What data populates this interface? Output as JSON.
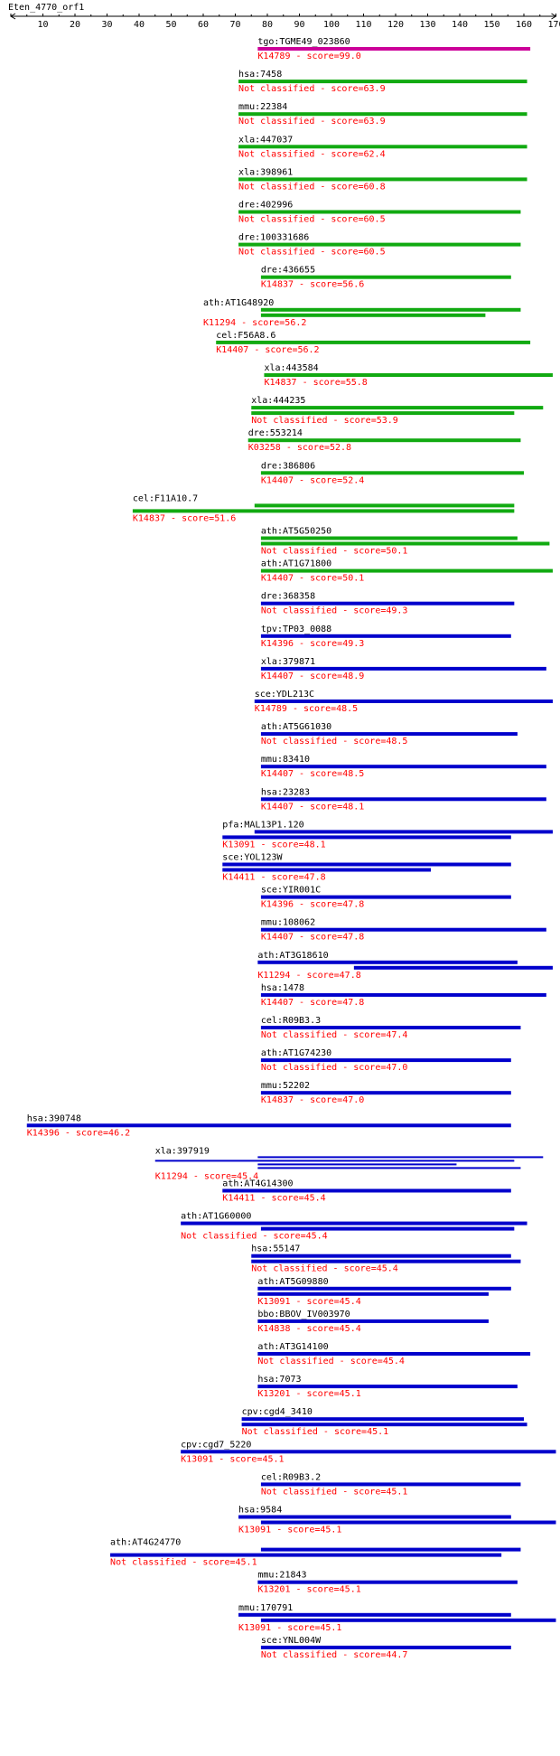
{
  "query": {
    "name": "Eten_4770_orf1",
    "length": 170,
    "scale_ticks": [
      10,
      20,
      30,
      40,
      50,
      60,
      70,
      80,
      90,
      100,
      110,
      120,
      130,
      140,
      150,
      160,
      170
    ]
  },
  "colors": {
    "background": "#ffffff",
    "axis": "#000000",
    "hit_label": "#000000",
    "score_label": "#ff0000",
    "bar_magenta": "#cc0099",
    "bar_green": "#11aa11",
    "bar_blue": "#0000cc"
  },
  "hits": [
    {
      "id": "tgo:TGME49_023860",
      "ko": "K14789",
      "score": "99.0",
      "color": "magenta",
      "label_pos": 77,
      "bars": [
        [
          77,
          162
        ]
      ]
    },
    {
      "id": "hsa:7458",
      "ko": "Not classified",
      "score": "63.9",
      "color": "green",
      "label_pos": 71,
      "bars": [
        [
          71,
          161
        ]
      ]
    },
    {
      "id": "mmu:22384",
      "ko": "Not classified",
      "score": "63.9",
      "color": "green",
      "label_pos": 71,
      "bars": [
        [
          71,
          161
        ]
      ]
    },
    {
      "id": "xla:447037",
      "ko": "Not classified",
      "score": "62.4",
      "color": "green",
      "label_pos": 71,
      "bars": [
        [
          71,
          161
        ]
      ]
    },
    {
      "id": "xla:398961",
      "ko": "Not classified",
      "score": "60.8",
      "color": "green",
      "label_pos": 71,
      "bars": [
        [
          71,
          161
        ]
      ]
    },
    {
      "id": "dre:402996",
      "ko": "Not classified",
      "score": "60.5",
      "color": "green",
      "label_pos": 71,
      "bars": [
        [
          71,
          159
        ]
      ]
    },
    {
      "id": "dre:100331686",
      "ko": "Not classified",
      "score": "60.5",
      "color": "green",
      "label_pos": 71,
      "bars": [
        [
          71,
          159
        ]
      ]
    },
    {
      "id": "dre:436655",
      "ko": "K14837",
      "score": "56.6",
      "color": "green",
      "label_pos": 78,
      "bars": [
        [
          78,
          156
        ]
      ]
    },
    {
      "id": "ath:AT1G48920",
      "ko": "K11294",
      "score": "56.2",
      "color": "green",
      "label_pos": 60,
      "bars": [
        [
          78,
          159
        ],
        [
          78,
          148
        ]
      ]
    },
    {
      "id": "cel:F56A8.6",
      "ko": "K14407",
      "score": "56.2",
      "color": "green",
      "label_pos": 64,
      "bars": [
        [
          64,
          162
        ]
      ]
    },
    {
      "id": "xla:443584",
      "ko": "K14837",
      "score": "55.8",
      "color": "green",
      "label_pos": 79,
      "bars": [
        [
          79,
          169
        ]
      ]
    },
    {
      "id": "xla:444235",
      "ko": "Not classified",
      "score": "53.9",
      "color": "green",
      "label_pos": 75,
      "bars": [
        [
          75,
          166
        ],
        [
          75,
          157
        ]
      ]
    },
    {
      "id": "dre:553214",
      "ko": "K03258",
      "score": "52.8",
      "color": "green",
      "label_pos": 74,
      "bars": [
        [
          74,
          159
        ]
      ]
    },
    {
      "id": "dre:386806",
      "ko": "K14407",
      "score": "52.4",
      "color": "green",
      "label_pos": 78,
      "bars": [
        [
          78,
          160
        ]
      ]
    },
    {
      "id": "cel:F11A10.7",
      "ko": "K14837",
      "score": "51.6",
      "color": "green",
      "label_pos": 38,
      "bars": [
        [
          76,
          157
        ],
        [
          38,
          157
        ]
      ]
    },
    {
      "id": "ath:AT5G50250",
      "ko": "Not classified",
      "score": "50.1",
      "color": "green",
      "label_pos": 78,
      "bars": [
        [
          78,
          158
        ],
        [
          78,
          168
        ]
      ]
    },
    {
      "id": "ath:AT1G71800",
      "ko": "K14407",
      "score": "50.1",
      "color": "green",
      "label_pos": 78,
      "bars": [
        [
          78,
          169
        ]
      ]
    },
    {
      "id": "dre:368358",
      "ko": "Not classified",
      "score": "49.3",
      "color": "blue",
      "label_pos": 78,
      "bars": [
        [
          78,
          157
        ]
      ]
    },
    {
      "id": "tpv:TP03_0088",
      "ko": "K14396",
      "score": "49.3",
      "color": "blue",
      "label_pos": 78,
      "bars": [
        [
          78,
          156
        ]
      ]
    },
    {
      "id": "xla:379871",
      "ko": "K14407",
      "score": "48.9",
      "color": "blue",
      "label_pos": 78,
      "bars": [
        [
          78,
          167
        ]
      ]
    },
    {
      "id": "sce:YDL213C",
      "ko": "K14789",
      "score": "48.5",
      "color": "blue",
      "label_pos": 76,
      "bars": [
        [
          76,
          169
        ]
      ]
    },
    {
      "id": "ath:AT5G61030",
      "ko": "Not classified",
      "score": "48.5",
      "color": "blue",
      "label_pos": 78,
      "bars": [
        [
          78,
          158
        ]
      ]
    },
    {
      "id": "mmu:83410",
      "ko": "K14407",
      "score": "48.5",
      "color": "blue",
      "label_pos": 78,
      "bars": [
        [
          78,
          167
        ]
      ]
    },
    {
      "id": "hsa:23283",
      "ko": "K14407",
      "score": "48.1",
      "color": "blue",
      "label_pos": 78,
      "bars": [
        [
          78,
          167
        ]
      ]
    },
    {
      "id": "pfa:MAL13P1.120",
      "ko": "K13091",
      "score": "48.1",
      "color": "blue",
      "label_pos": 66,
      "bars": [
        [
          76,
          169
        ],
        [
          66,
          156
        ]
      ]
    },
    {
      "id": "sce:YOL123W",
      "ko": "K14411",
      "score": "47.8",
      "color": "blue",
      "label_pos": 66,
      "bars": [
        [
          66,
          156
        ],
        [
          66,
          131
        ]
      ]
    },
    {
      "id": "sce:YIR001C",
      "ko": "K14396",
      "score": "47.8",
      "color": "blue",
      "label_pos": 78,
      "bars": [
        [
          78,
          156
        ]
      ]
    },
    {
      "id": "mmu:108062",
      "ko": "K14407",
      "score": "47.8",
      "color": "blue",
      "label_pos": 78,
      "bars": [
        [
          78,
          167
        ]
      ]
    },
    {
      "id": "ath:AT3G18610",
      "ko": "K11294",
      "score": "47.8",
      "color": "blue",
      "label_pos": 77,
      "bars": [
        [
          77,
          158
        ],
        [
          107,
          169
        ]
      ]
    },
    {
      "id": "hsa:1478",
      "ko": "K14407",
      "score": "47.8",
      "color": "blue",
      "label_pos": 78,
      "bars": [
        [
          78,
          167
        ]
      ]
    },
    {
      "id": "cel:R09B3.3",
      "ko": "Not classified",
      "score": "47.4",
      "color": "blue",
      "label_pos": 78,
      "bars": [
        [
          78,
          159
        ]
      ]
    },
    {
      "id": "ath:AT1G74230",
      "ko": "Not classified",
      "score": "47.0",
      "color": "blue",
      "label_pos": 78,
      "bars": [
        [
          78,
          156
        ]
      ]
    },
    {
      "id": "mmu:52202",
      "ko": "K14837",
      "score": "47.0",
      "color": "blue",
      "label_pos": 78,
      "bars": [
        [
          78,
          156
        ]
      ]
    },
    {
      "id": "hsa:390748",
      "ko": "K14396",
      "score": "46.2",
      "color": "blue",
      "label_pos": 5,
      "bars": [
        [
          5,
          156
        ]
      ]
    },
    {
      "id": "xla:397919",
      "ko": "K11294",
      "score": "45.4",
      "color": "blue",
      "label_pos": 45,
      "bars": [
        [
          77,
          166
        ],
        [
          45,
          157
        ],
        [
          77,
          139
        ],
        [
          77,
          159
        ]
      ]
    },
    {
      "id": "ath:AT4G14300",
      "ko": "K14411",
      "score": "45.4",
      "color": "blue",
      "label_pos": 66,
      "bars": [
        [
          66,
          156
        ]
      ]
    },
    {
      "id": "ath:AT1G60000",
      "ko": "Not classified",
      "score": "45.4",
      "color": "blue",
      "label_pos": 53,
      "bars": [
        [
          53,
          161
        ],
        [
          78,
          157
        ]
      ]
    },
    {
      "id": "hsa:55147",
      "ko": "Not classified",
      "score": "45.4",
      "color": "blue",
      "label_pos": 75,
      "bars": [
        [
          75,
          156
        ],
        [
          75,
          159
        ]
      ]
    },
    {
      "id": "ath:AT5G09880",
      "ko": "K13091",
      "score": "45.4",
      "color": "blue",
      "label_pos": 77,
      "bars": [
        [
          77,
          156
        ],
        [
          77,
          149
        ]
      ]
    },
    {
      "id": "bbo:BBOV_IV003970",
      "ko": "K14838",
      "score": "45.4",
      "color": "blue",
      "label_pos": 77,
      "bars": [
        [
          77,
          149
        ]
      ]
    },
    {
      "id": "ath:AT3G14100",
      "ko": "Not classified",
      "score": "45.4",
      "color": "blue",
      "label_pos": 77,
      "bars": [
        [
          77,
          162
        ]
      ]
    },
    {
      "id": "hsa:7073",
      "ko": "K13201",
      "score": "45.1",
      "color": "blue",
      "label_pos": 77,
      "bars": [
        [
          77,
          158
        ]
      ]
    },
    {
      "id": "cpv:cgd4_3410",
      "ko": "Not classified",
      "score": "45.1",
      "color": "blue",
      "label_pos": 72,
      "bars": [
        [
          72,
          160
        ],
        [
          72,
          161
        ]
      ]
    },
    {
      "id": "cpv:cgd7_5220",
      "ko": "K13091",
      "score": "45.1",
      "color": "blue",
      "label_pos": 53,
      "bars": [
        [
          53,
          170
        ]
      ]
    },
    {
      "id": "cel:R09B3.2",
      "ko": "Not classified",
      "score": "45.1",
      "color": "blue",
      "label_pos": 78,
      "bars": [
        [
          78,
          159
        ]
      ]
    },
    {
      "id": "hsa:9584",
      "ko": "K13091",
      "score": "45.1",
      "color": "blue",
      "label_pos": 71,
      "bars": [
        [
          71,
          156
        ],
        [
          78,
          170
        ]
      ]
    },
    {
      "id": "ath:AT4G24770",
      "ko": "Not classified",
      "score": "45.1",
      "color": "blue",
      "label_pos": 31,
      "bars": [
        [
          78,
          159
        ],
        [
          31,
          153
        ]
      ]
    },
    {
      "id": "mmu:21843",
      "ko": "K13201",
      "score": "45.1",
      "color": "blue",
      "label_pos": 77,
      "bars": [
        [
          77,
          158
        ]
      ]
    },
    {
      "id": "mmu:170791",
      "ko": "K13091",
      "score": "45.1",
      "color": "blue",
      "label_pos": 71,
      "bars": [
        [
          71,
          156
        ],
        [
          78,
          170
        ]
      ]
    },
    {
      "id": "sce:YNL004W",
      "ko": "Not classified",
      "score": "44.7",
      "color": "blue",
      "label_pos": 78,
      "bars": [
        [
          78,
          156
        ]
      ]
    }
  ]
}
